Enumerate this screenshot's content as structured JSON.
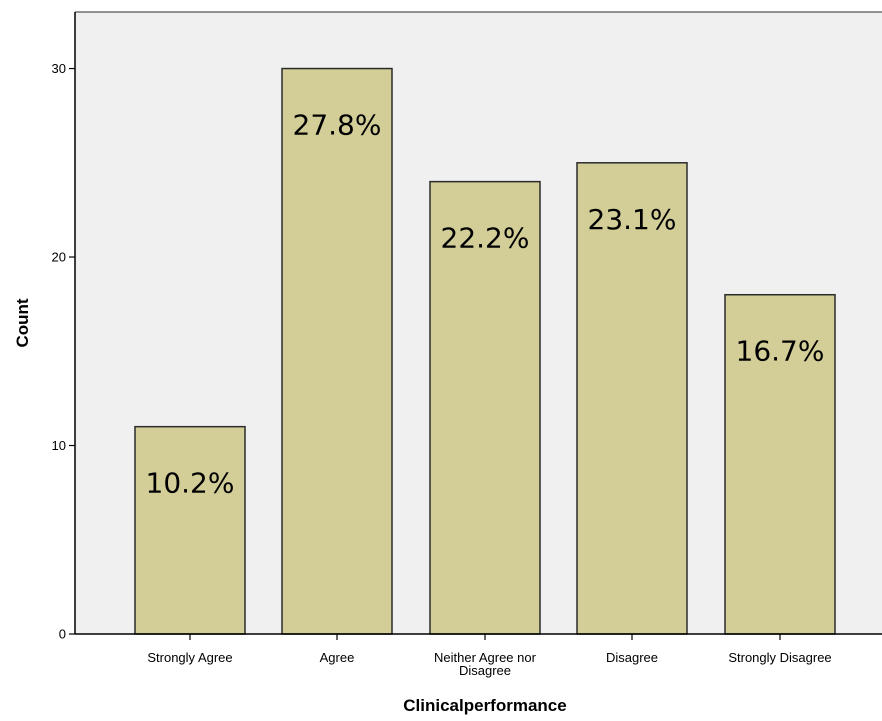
{
  "chart_data": {
    "type": "bar",
    "categories": [
      "Strongly Agree",
      "Agree",
      "Neither Agree nor Disagree",
      "Disagree",
      "Strongly Disagree"
    ],
    "category_lines": [
      [
        "Strongly Agree"
      ],
      [
        "Agree"
      ],
      [
        "Neither Agree nor",
        "Disagree"
      ],
      [
        "Disagree"
      ],
      [
        "Strongly Disagree"
      ]
    ],
    "values": [
      11,
      30,
      24,
      25,
      18
    ],
    "data_labels": [
      "10.2%",
      "27.8%",
      "22.2%",
      "23.1%",
      "16.7%"
    ],
    "xlabel": "Clinicalperformance",
    "ylabel": "Count",
    "ylim": [
      0,
      33
    ],
    "yticks": [
      0,
      10,
      20,
      30
    ],
    "grid": false,
    "colors": {
      "plot_background": "#f0f0f0",
      "bar_fill": "#d3ce97",
      "bar_stroke": "#2b2b2b",
      "axis": "#000000"
    }
  }
}
